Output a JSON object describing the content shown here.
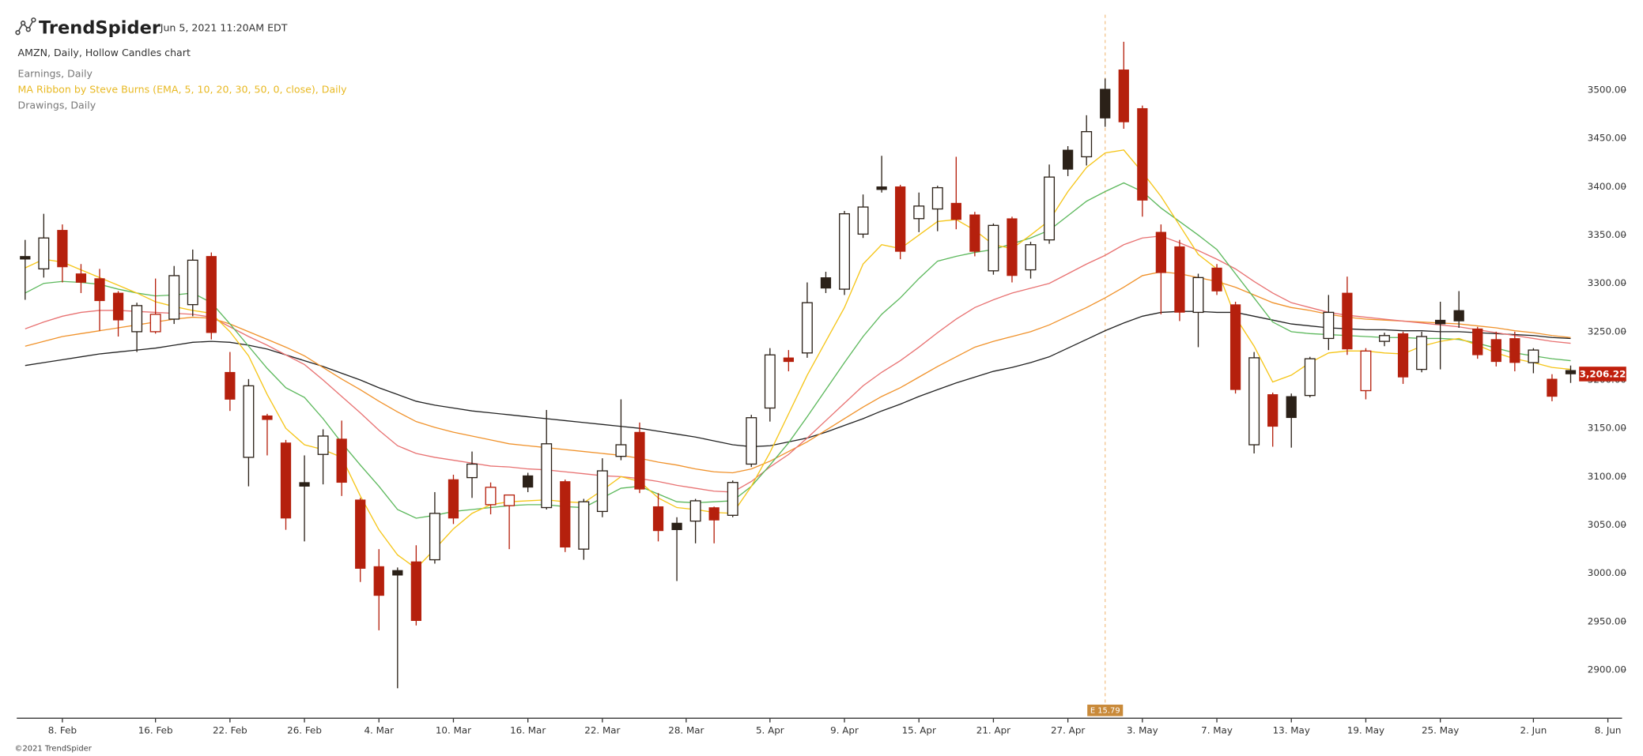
{
  "header": {
    "brand": "TrendSpider",
    "timestamp": "Jun 5, 2021 11:20AM EDT",
    "indicators": [
      "Earnings, Daily",
      "MA Ribbon by Steve Burns (EMA, 5, 10, 20, 30, 50, 0, close), Daily",
      "Drawings, Daily"
    ],
    "footer": "©2021 TrendSpider"
  },
  "chart_data": {
    "type": "candlestick",
    "title": "AMZN, Daily, Hollow Candles chart",
    "open": [
      3328,
      3315,
      3355,
      3310,
      3305,
      3290,
      3250,
      3250,
      3263,
      3278,
      3328,
      3208,
      3120,
      3163,
      3135,
      3094,
      3123,
      3139,
      3076,
      3007,
      3003,
      3012,
      3014,
      3097,
      3099,
      3071,
      3070,
      3101,
      3068,
      3095,
      3025,
      3064,
      3121,
      3146,
      3069,
      3052,
      3054,
      3068,
      3060,
      3113,
      3171,
      3223,
      3228,
      3306,
      3294,
      3351,
      3400,
      3400,
      3367,
      3377,
      3383,
      3371,
      3313,
      3367,
      3314,
      3345,
      3438,
      3431,
      3501,
      3521,
      3481,
      3353,
      3338,
      3270,
      3316,
      3278,
      3133,
      3185,
      3183,
      3184,
      3243,
      3290,
      3189,
      3240,
      3248,
      3211,
      3262,
      3272,
      3253,
      3242,
      3243,
      3218,
      3201,
      3210
    ],
    "high": [
      3345,
      3372,
      3361,
      3320,
      3315,
      3292,
      3280,
      3305,
      3318,
      3335,
      3332,
      3229,
      3201,
      3165,
      3138,
      3122,
      3149,
      3158,
      3078,
      3025,
      3006,
      3029,
      3084,
      3102,
      3126,
      3094,
      3081,
      3104,
      3169,
      3097,
      3077,
      3119,
      3180,
      3156,
      3083,
      3058,
      3077,
      3069,
      3096,
      3164,
      3233,
      3231,
      3301,
      3312,
      3375,
      3392,
      3432,
      3402,
      3394,
      3401,
      3431,
      3374,
      3362,
      3369,
      3343,
      3423,
      3442,
      3474,
      3512,
      3550,
      3484,
      3361,
      3345,
      3310,
      3320,
      3281,
      3229,
      3187,
      3186,
      3224,
      3288,
      3307,
      3233,
      3249,
      3250,
      3250,
      3281,
      3292,
      3255,
      3250,
      3250,
      3233,
      3206,
      3215
    ],
    "low": [
      3283,
      3306,
      3301,
      3290,
      3251,
      3245,
      3229,
      3248,
      3258,
      3266,
      3242,
      3168,
      3090,
      3122,
      3045,
      3033,
      3092,
      3080,
      2991,
      2941,
      2881,
      2946,
      3010,
      3051,
      3078,
      3061,
      3025,
      3084,
      3066,
      3022,
      3014,
      3058,
      3117,
      3083,
      3033,
      2992,
      3031,
      3031,
      3058,
      3110,
      3157,
      3209,
      3223,
      3290,
      3288,
      3347,
      3394,
      3325,
      3353,
      3354,
      3356,
      3328,
      3309,
      3301,
      3305,
      3341,
      3411,
      3422,
      3462,
      3460,
      3369,
      3268,
      3261,
      3234,
      3288,
      3186,
      3124,
      3131,
      3130,
      3182,
      3231,
      3226,
      3180,
      3235,
      3196,
      3208,
      3211,
      3254,
      3222,
      3214,
      3209,
      3207,
      3178,
      3197
    ],
    "close": [
      3325,
      3347,
      3317,
      3301,
      3282,
      3262,
      3277,
      3268,
      3308,
      3324,
      3249,
      3180,
      3194,
      3159,
      3057,
      3090,
      3142,
      3094,
      3005,
      2977,
      2998,
      2951,
      3062,
      3057,
      3113,
      3089,
      3081,
      3089,
      3134,
      3027,
      3074,
      3106,
      3133,
      3087,
      3044,
      3045,
      3075,
      3055,
      3094,
      3161,
      3226,
      3219,
      3280,
      3295,
      3372,
      3379,
      3397,
      3333,
      3380,
      3399,
      3366,
      3333,
      3360,
      3308,
      3340,
      3410,
      3418,
      3457,
      3471,
      3467,
      3386,
      3311,
      3270,
      3306,
      3292,
      3190,
      3223,
      3152,
      3161,
      3222,
      3270,
      3232,
      3230,
      3246,
      3203,
      3245,
      3258,
      3261,
      3226,
      3219,
      3218,
      3231,
      3183,
      3206.22
    ],
    "last_price_label": "3,206.22",
    "colors": {
      "up": "#2b2118",
      "down": "#b5200d",
      "hollow": "#ffffff",
      "tag": "#c0200d"
    },
    "ribbon": [
      {
        "color": "#222222",
        "values": [
          3215,
          3218,
          3221,
          3224,
          3227,
          3229,
          3231,
          3233,
          3236,
          3239,
          3240,
          3239,
          3236,
          3232,
          3226,
          3220,
          3214,
          3207,
          3200,
          3192,
          3185,
          3178,
          3174,
          3171,
          3168,
          3166,
          3164,
          3162,
          3160,
          3158,
          3156,
          3154,
          3152,
          3150,
          3147,
          3144,
          3141,
          3137,
          3133,
          3131,
          3132,
          3136,
          3140,
          3146,
          3153,
          3160,
          3168,
          3175,
          3183,
          3190,
          3197,
          3203,
          3209,
          3213,
          3218,
          3224,
          3233,
          3242,
          3251,
          3259,
          3266,
          3270,
          3271,
          3271,
          3270,
          3270,
          3266,
          3262,
          3258,
          3256,
          3254,
          3253,
          3252,
          3252,
          3251,
          3251,
          3250,
          3250,
          3249,
          3248,
          3247,
          3246,
          3244,
          3243
        ]
      },
      {
        "color": "#f0922b",
        "values": [
          3235,
          3240,
          3245,
          3248,
          3251,
          3254,
          3257,
          3260,
          3263,
          3265,
          3264,
          3258,
          3250,
          3242,
          3234,
          3225,
          3213,
          3201,
          3190,
          3178,
          3167,
          3157,
          3151,
          3146,
          3142,
          3138,
          3134,
          3132,
          3130,
          3128,
          3126,
          3124,
          3122,
          3119,
          3115,
          3112,
          3108,
          3105,
          3104,
          3108,
          3116,
          3126,
          3136,
          3148,
          3160,
          3172,
          3183,
          3192,
          3203,
          3214,
          3224,
          3234,
          3240,
          3245,
          3250,
          3257,
          3266,
          3275,
          3285,
          3296,
          3308,
          3312,
          3310,
          3306,
          3302,
          3296,
          3288,
          3280,
          3275,
          3272,
          3268,
          3265,
          3263,
          3262,
          3261,
          3260,
          3259,
          3258,
          3256,
          3254,
          3251,
          3249,
          3246,
          3244
        ]
      },
      {
        "color": "#e87272",
        "values": [
          3253,
          3260,
          3266,
          3270,
          3272,
          3272,
          3271,
          3270,
          3269,
          3268,
          3265,
          3255,
          3245,
          3236,
          3226,
          3216,
          3200,
          3183,
          3166,
          3148,
          3132,
          3124,
          3120,
          3117,
          3114,
          3111,
          3110,
          3108,
          3107,
          3105,
          3103,
          3101,
          3100,
          3098,
          3095,
          3091,
          3088,
          3085,
          3084,
          3095,
          3110,
          3123,
          3140,
          3158,
          3176,
          3194,
          3208,
          3220,
          3234,
          3249,
          3263,
          3275,
          3283,
          3290,
          3295,
          3300,
          3310,
          3320,
          3329,
          3340,
          3347,
          3349,
          3342,
          3334,
          3325,
          3315,
          3302,
          3290,
          3280,
          3275,
          3270,
          3267,
          3265,
          3263,
          3261,
          3259,
          3257,
          3255,
          3252,
          3249,
          3246,
          3243,
          3240,
          3238
        ]
      },
      {
        "color": "#5cb85c",
        "values": [
          3290,
          3300,
          3302,
          3301,
          3299,
          3294,
          3290,
          3287,
          3288,
          3290,
          3280,
          3258,
          3235,
          3212,
          3192,
          3182,
          3160,
          3135,
          3112,
          3090,
          3066,
          3057,
          3060,
          3064,
          3066,
          3068,
          3070,
          3071,
          3071,
          3069,
          3068,
          3078,
          3088,
          3090,
          3082,
          3074,
          3073,
          3074,
          3075,
          3090,
          3112,
          3135,
          3162,
          3190,
          3218,
          3245,
          3268,
          3285,
          3305,
          3323,
          3328,
          3332,
          3335,
          3341,
          3347,
          3355,
          3370,
          3385,
          3395,
          3404,
          3395,
          3378,
          3364,
          3350,
          3335,
          3310,
          3285,
          3260,
          3250,
          3248,
          3247,
          3246,
          3245,
          3244,
          3244,
          3243,
          3243,
          3242,
          3238,
          3233,
          3228,
          3225,
          3222,
          3220
        ]
      },
      {
        "color": "#f5c518",
        "values": [
          3316,
          3325,
          3322,
          3314,
          3306,
          3298,
          3290,
          3281,
          3276,
          3272,
          3269,
          3250,
          3225,
          3185,
          3150,
          3133,
          3128,
          3120,
          3080,
          3045,
          3019,
          3005,
          3025,
          3046,
          3062,
          3071,
          3074,
          3075,
          3076,
          3074,
          3073,
          3086,
          3100,
          3095,
          3078,
          3068,
          3066,
          3063,
          3062,
          3090,
          3125,
          3165,
          3205,
          3240,
          3275,
          3320,
          3340,
          3336,
          3350,
          3364,
          3366,
          3355,
          3340,
          3336,
          3350,
          3365,
          3395,
          3420,
          3435,
          3438,
          3415,
          3390,
          3360,
          3330,
          3315,
          3265,
          3235,
          3198,
          3205,
          3218,
          3228,
          3230,
          3230,
          3228,
          3227,
          3235,
          3240,
          3243,
          3236,
          3228,
          3222,
          3218,
          3213,
          3211
        ]
      }
    ],
    "earnings": {
      "label": "E 15.79"
    },
    "xlim": [
      -0.45,
      85.76
    ],
    "xticks": [
      {
        "value": 2,
        "label": "8. Feb"
      },
      {
        "value": 7,
        "label": "16. Feb"
      },
      {
        "value": 11,
        "label": "22. Feb"
      },
      {
        "value": 15,
        "label": "26. Feb"
      },
      {
        "value": 19,
        "label": "4. Mar"
      },
      {
        "value": 23,
        "label": "10. Mar"
      },
      {
        "value": 27,
        "label": "16. Mar"
      },
      {
        "value": 31,
        "label": "22. Mar"
      },
      {
        "value": 35.5,
        "label": "28. Mar"
      },
      {
        "value": 40,
        "label": "5. Apr"
      },
      {
        "value": 44,
        "label": "9. Apr"
      },
      {
        "value": 48,
        "label": "15. Apr"
      },
      {
        "value": 52,
        "label": "21. Apr"
      },
      {
        "value": 56,
        "label": "27. Apr"
      },
      {
        "value": 60,
        "label": "3. May"
      },
      {
        "value": 64,
        "label": "7. May"
      },
      {
        "value": 68,
        "label": "13. May"
      },
      {
        "value": 72,
        "label": "19. May"
      },
      {
        "value": 76,
        "label": "25. May"
      },
      {
        "value": 81,
        "label": "2. Jun"
      },
      {
        "value": 85,
        "label": "8. Jun"
      }
    ],
    "ylim": [
      2850,
      3578
    ],
    "yticks": [
      {
        "value": 2900,
        "label": "2900.00"
      },
      {
        "value": 2950,
        "label": "2950.00"
      },
      {
        "value": 3000,
        "label": "3000.00"
      },
      {
        "value": 3050,
        "label": "3050.00"
      },
      {
        "value": 3100,
        "label": "3100.00"
      },
      {
        "value": 3150,
        "label": "3150.00"
      },
      {
        "value": 3200,
        "label": "3200.00"
      },
      {
        "value": 3250,
        "label": "3250.00"
      },
      {
        "value": 3300,
        "label": "3300.00"
      },
      {
        "value": 3350,
        "label": "3350.00"
      },
      {
        "value": 3400,
        "label": "3400.00"
      },
      {
        "value": 3450,
        "label": "3450.00"
      },
      {
        "value": 3500,
        "label": "3500.00"
      }
    ],
    "grid": false
  }
}
